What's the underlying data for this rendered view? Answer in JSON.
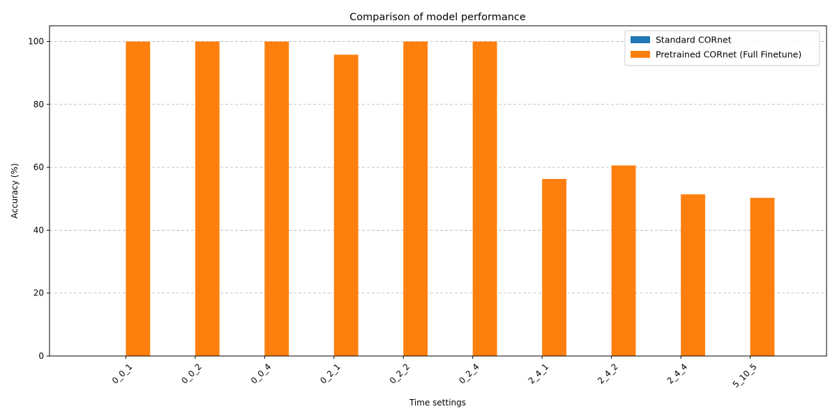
{
  "chart_data": {
    "type": "bar",
    "title": "Comparison of model performance",
    "xlabel": "Time settings",
    "ylabel": "Accuracy (%)",
    "categories": [
      "0_0_1",
      "0_0_2",
      "0_0_4",
      "0_2_1",
      "0_2_2",
      "0_2_4",
      "2_4_1",
      "2_4_2",
      "2_4_4",
      "5_10_5"
    ],
    "series": [
      {
        "name": "Standard CORnet",
        "color": "#1f77b4",
        "values": [
          0,
          0,
          0,
          0,
          0,
          0,
          0,
          0,
          0,
          0
        ]
      },
      {
        "name": "Pretrained CORnet (Full Finetune)",
        "color": "#ff7f0e",
        "values": [
          100,
          100,
          100,
          95.8,
          100,
          100,
          56.3,
          60.6,
          51.4,
          50.3
        ]
      }
    ],
    "ylim": [
      0,
      105
    ],
    "yticks": [
      0,
      20,
      40,
      60,
      80,
      100
    ],
    "grid": "y-dashed",
    "legend": "top-right"
  }
}
